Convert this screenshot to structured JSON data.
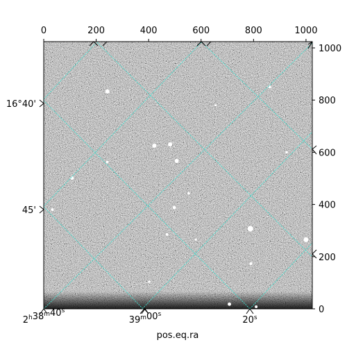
{
  "figure": {
    "xlabel": "pos.eq.ra",
    "pixel_range": {
      "x": [
        0,
        1024
      ],
      "y": [
        0,
        1024
      ]
    },
    "top_ticks": [
      "0",
      "200",
      "400",
      "600",
      "800",
      "1000"
    ],
    "top_tick_values": [
      0,
      200,
      400,
      600,
      800,
      1000
    ],
    "right_ticks": [
      "0",
      "200",
      "400",
      "600",
      "800",
      "1000"
    ],
    "right_tick_values": [
      0,
      200,
      400,
      600,
      800,
      1000
    ],
    "ra_ticks": [
      {
        "h": "2",
        "hu": "h",
        "m": "38",
        "mu": "m",
        "s": "40",
        "su": "s",
        "value": 40
      },
      {
        "h": "",
        "hu": "",
        "m": "39",
        "mu": "m",
        "s": "00",
        "su": "s",
        "value": 415
      },
      {
        "h": "",
        "hu": "",
        "m": "",
        "mu": "",
        "s": "20",
        "su": "s",
        "value": 790
      }
    ],
    "dec_ticks": [
      {
        "label": "16°40'",
        "value": 780
      },
      {
        "label": "45'",
        "value": 370
      }
    ],
    "grid_color": "#40e0d0",
    "background_color": "#000000"
  },
  "chart_data": {
    "type": "heatmap",
    "title": "",
    "xlabel": "pos.eq.ra",
    "ylabel": "",
    "xlim": [
      0,
      1024
    ],
    "ylim": [
      0,
      1024
    ],
    "grid": true,
    "sources": [
      {
        "x": 243,
        "y": 833,
        "r": 3
      },
      {
        "x": 422,
        "y": 625,
        "r": 3
      },
      {
        "x": 482,
        "y": 630,
        "r": 3
      },
      {
        "x": 507,
        "y": 567,
        "r": 3
      },
      {
        "x": 108,
        "y": 501,
        "r": 2.5
      },
      {
        "x": 33,
        "y": 380,
        "r": 2
      },
      {
        "x": 498,
        "y": 388,
        "r": 2.5
      },
      {
        "x": 788,
        "y": 307,
        "r": 4
      },
      {
        "x": 1000,
        "y": 265,
        "r": 3.5
      },
      {
        "x": 862,
        "y": 850,
        "r": 2
      },
      {
        "x": 790,
        "y": 173,
        "r": 2
      },
      {
        "x": 708,
        "y": 18,
        "r": 2.5
      },
      {
        "x": 810,
        "y": 8,
        "r": 2
      },
      {
        "x": 470,
        "y": 285,
        "r": 2
      },
      {
        "x": 553,
        "y": 443,
        "r": 1.8
      },
      {
        "x": 402,
        "y": 104,
        "r": 1.8
      },
      {
        "x": 926,
        "y": 600,
        "r": 1.8
      },
      {
        "x": 242,
        "y": 563,
        "r": 1.8
      },
      {
        "x": 580,
        "y": 265,
        "r": 1.5
      },
      {
        "x": 655,
        "y": 780,
        "r": 1.5
      }
    ]
  }
}
